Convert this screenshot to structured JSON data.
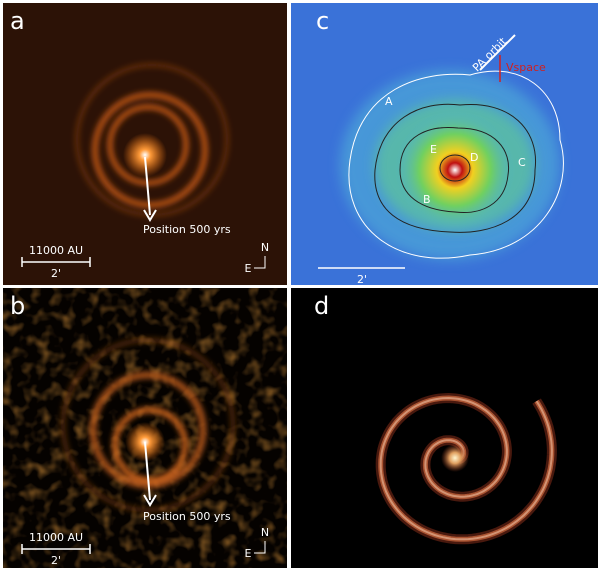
{
  "panels": [
    {
      "label": "a",
      "scale_length": "11000 AU",
      "scale_angle": "2'",
      "north": "N",
      "east": "E",
      "annotation": "Position 500 yrs"
    },
    {
      "label": "b",
      "scale_length": "11000 AU",
      "scale_angle": "2'",
      "north": "N",
      "east": "E",
      "annotation": "Position 500 yrs"
    },
    {
      "label": "c",
      "scale_angle": "2'",
      "orbit_label": "PA orbit",
      "velocity_label": "Vspace",
      "points": [
        "A",
        "B",
        "C",
        "D",
        "E"
      ]
    },
    {
      "label": "d"
    }
  ]
}
